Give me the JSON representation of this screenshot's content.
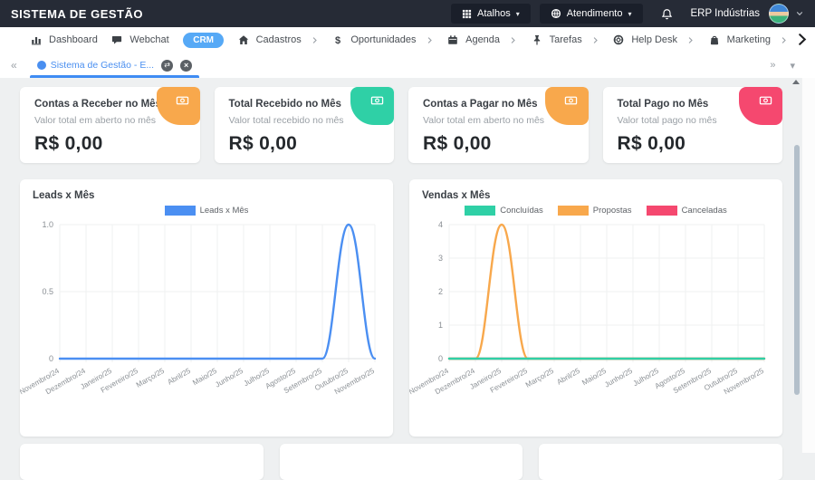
{
  "topbar": {
    "brand": "SISTEMA DE GESTÃO",
    "atalhos_label": "Atalhos",
    "atendimento_label": "Atendimento",
    "user_name": "ERP Indústrias",
    "bg_color": "#262b36"
  },
  "menu": {
    "items": [
      {
        "label": "Dashboard",
        "icon": "chart-bar-icon",
        "arrow": false,
        "badge": false
      },
      {
        "label": "Webchat",
        "icon": "chat-icon",
        "arrow": false,
        "badge": false
      },
      {
        "label": "CRM",
        "icon": null,
        "arrow": false,
        "badge": true,
        "badge_color": "#56a9f6"
      },
      {
        "label": "Cadastros",
        "icon": "home-icon",
        "arrow": true,
        "badge": false
      },
      {
        "label": "Oportunidades",
        "icon": "dollar-icon",
        "arrow": true,
        "badge": false
      },
      {
        "label": "Agenda",
        "icon": "calendar-icon",
        "arrow": true,
        "badge": false
      },
      {
        "label": "Tarefas",
        "icon": "pin-icon",
        "arrow": true,
        "badge": false
      },
      {
        "label": "Help Desk",
        "icon": "life-ring-icon",
        "arrow": true,
        "badge": false
      },
      {
        "label": "Marketing",
        "icon": "bag-icon",
        "arrow": true,
        "badge": false
      }
    ]
  },
  "tabbar": {
    "collapse_arrow": "«",
    "expand_arrow": "»",
    "caret": "▾",
    "active_tab": {
      "label": "Sistema de Gestão - E...",
      "accent": "#4a8ff0"
    }
  },
  "kpis": [
    {
      "title": "Contas a Receber no Mês",
      "subtitle": "Valor total em aberto no mês",
      "value": "R$ 0,00",
      "accent": "#f8a84c"
    },
    {
      "title": "Total Recebido no Mês",
      "subtitle": "Valor total recebido no mês",
      "value": "R$ 0,00",
      "accent": "#2fd0a6"
    },
    {
      "title": "Contas a Pagar no Mês",
      "subtitle": "Valor total em aberto no mês",
      "value": "R$ 0,00",
      "accent": "#f8a84c"
    },
    {
      "title": "Total Pago no Mês",
      "subtitle": "Valor total pago no mês",
      "value": "R$ 0,00",
      "accent": "#f5486f"
    }
  ],
  "chart_data": [
    {
      "type": "line",
      "title": "Leads x Mês",
      "categories": [
        "Novembro/24",
        "Dezembro/24",
        "Janeiro/25",
        "Fevereiro/25",
        "Março/25",
        "Abril/25",
        "Maio/25",
        "Junho/25",
        "Julho/25",
        "Agosto/25",
        "Setembro/25",
        "Outubro/25",
        "Novembro/25"
      ],
      "series": [
        {
          "name": "Leads x Mês",
          "color": "#4b8ff2",
          "values": [
            0,
            0,
            0,
            0,
            0,
            0,
            0,
            0,
            0,
            0,
            0,
            1,
            0
          ]
        }
      ],
      "ylim": [
        0,
        1
      ],
      "yticks": [
        0,
        0.5,
        1
      ],
      "ytick_labels": [
        "0",
        "0.5",
        "1.0"
      ],
      "legend_position": "top",
      "grid": true
    },
    {
      "type": "line",
      "title": "Vendas x Mês",
      "categories": [
        "Novembro/24",
        "Dezembro/24",
        "Janeiro/25",
        "Fevereiro/25",
        "Março/25",
        "Abril/25",
        "Maio/25",
        "Junho/25",
        "Julho/25",
        "Agosto/25",
        "Setembro/25",
        "Outubro/25",
        "Novembro/25"
      ],
      "series": [
        {
          "name": "Concluídas",
          "color": "#2fd0a6",
          "values": [
            0,
            0,
            0,
            0,
            0,
            0,
            0,
            0,
            0,
            0,
            0,
            0,
            0
          ]
        },
        {
          "name": "Propostas",
          "color": "#f8a84c",
          "values": [
            0,
            0,
            4,
            0,
            0,
            0,
            0,
            0,
            0,
            0,
            0,
            0,
            0
          ]
        },
        {
          "name": "Canceladas",
          "color": "#f5486f",
          "values": [
            0,
            0,
            0,
            0,
            0,
            0,
            0,
            0,
            0,
            0,
            0,
            0,
            0
          ]
        }
      ],
      "ylim": [
        0,
        4
      ],
      "yticks": [
        0,
        1,
        2,
        3,
        4
      ],
      "ytick_labels": [
        "0",
        "1",
        "2",
        "3",
        "4"
      ],
      "legend_position": "top",
      "grid": true
    }
  ]
}
